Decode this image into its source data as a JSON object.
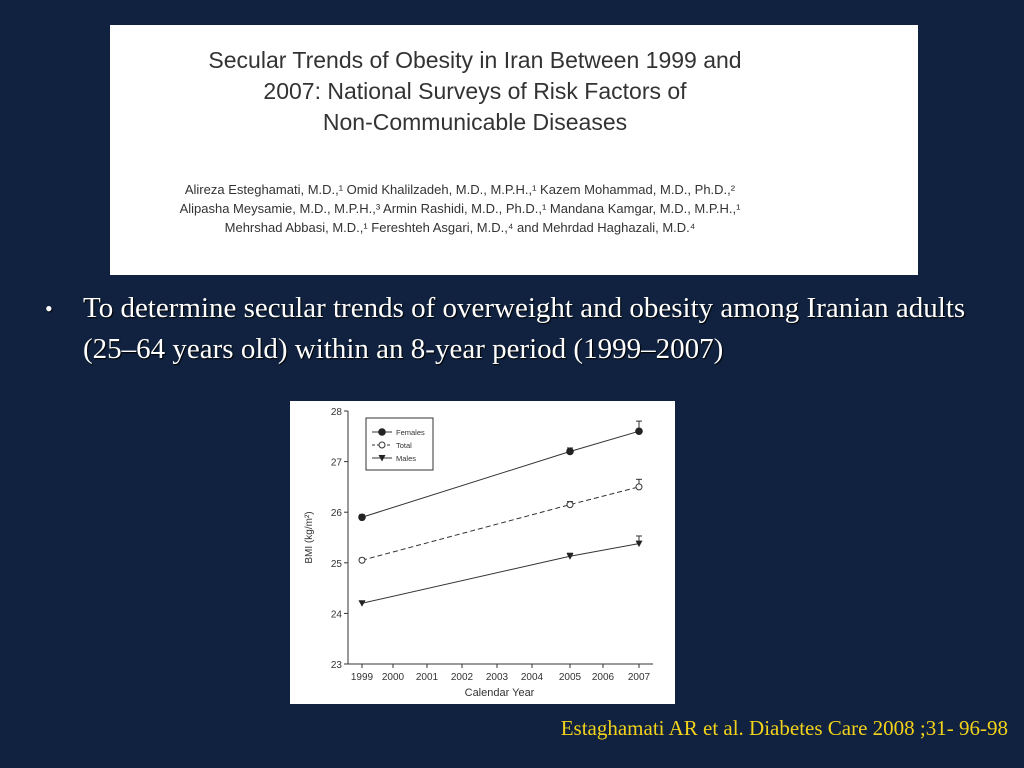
{
  "paper": {
    "title_lines": [
      "Secular Trends of Obesity in Iran Between 1999 and",
      "2007: National Surveys of Risk Factors of",
      "Non-Communicable Diseases"
    ],
    "author_lines": [
      "Alireza Esteghamati, M.D.,¹ Omid Khalilzadeh, M.D., M.P.H.,¹ Kazem Mohammad, M.D., Ph.D.,²",
      "Alipasha Meysamie, M.D., M.P.H.,³ Armin Rashidi, M.D., Ph.D.,¹ Mandana Kamgar, M.D., M.P.H.,¹",
      "Mehrshad Abbasi, M.D.,¹ Fereshteh Asgari, M.D.,⁴ and Mehrdad Haghazali, M.D.⁴"
    ]
  },
  "bullet": {
    "symbol": "•",
    "text": "To determine secular trends of overweight and obesity among Iranian adults (25–64 years old) within an 8-year period (1999–2007)"
  },
  "citation": "Estaghamati AR et al. Diabetes Care 2008 ;31- 96-98",
  "chart_data": {
    "type": "line",
    "title": "",
    "xlabel": "Calendar Year",
    "ylabel": "BMI (kg/m²)",
    "x_ticks": [
      1999,
      2000,
      2001,
      2002,
      2003,
      2004,
      2005,
      2006,
      2007
    ],
    "y_ticks": [
      23,
      24,
      25,
      26,
      27,
      28
    ],
    "xlim": [
      1999,
      2007
    ],
    "ylim": [
      23,
      28
    ],
    "grid": false,
    "legend": "top-left",
    "series": [
      {
        "name": "Females",
        "marker": "filled-circle",
        "dash": "solid",
        "x": [
          1999,
          2005,
          2007
        ],
        "y": [
          25.9,
          27.2,
          27.6
        ],
        "err": [
          0.05,
          0.07,
          0.2
        ]
      },
      {
        "name": "Total",
        "marker": "open-circle",
        "dash": "dashed",
        "x": [
          1999,
          2005,
          2007
        ],
        "y": [
          25.05,
          26.15,
          26.5
        ],
        "err": [
          0.04,
          0.06,
          0.15
        ]
      },
      {
        "name": "Males",
        "marker": "filled-triangle",
        "dash": "solid",
        "x": [
          1999,
          2005,
          2007
        ],
        "y": [
          24.2,
          25.13,
          25.38
        ],
        "err": [
          0.04,
          0.06,
          0.15
        ]
      }
    ]
  }
}
